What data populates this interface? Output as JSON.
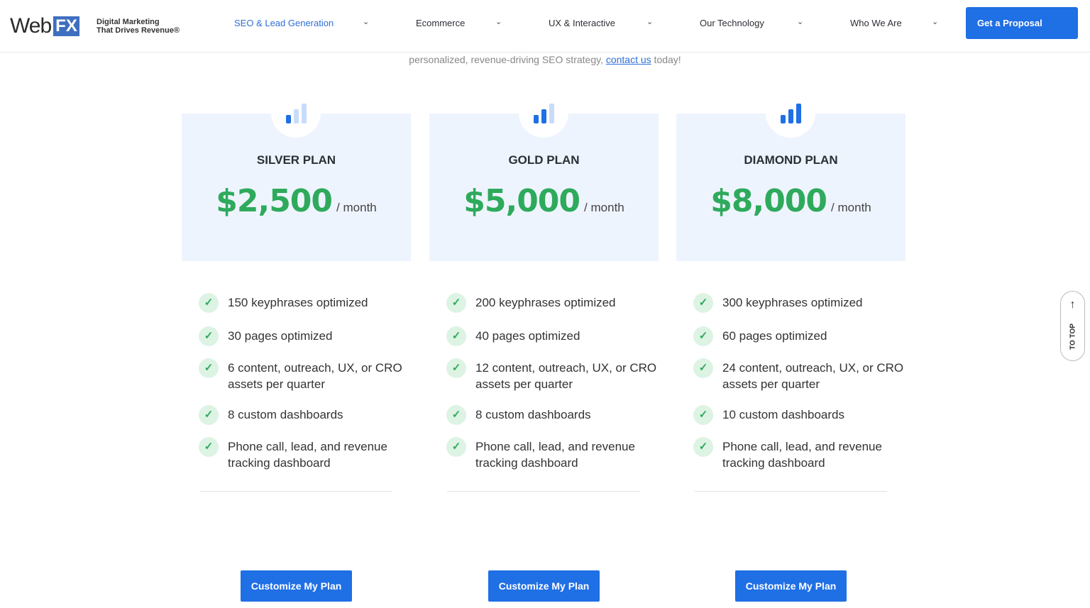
{
  "header": {
    "logo_web": "Web",
    "logo_fx": "FX",
    "tagline_1": "Digital Marketing",
    "tagline_2": "That Drives Revenue®",
    "nav": [
      {
        "label": "SEO & Lead Generation"
      },
      {
        "label": "Ecommerce"
      },
      {
        "label": "UX & Interactive"
      },
      {
        "label": "Our Technology"
      },
      {
        "label": "Who We Are"
      }
    ],
    "cta": "Get a Proposal",
    "accent": "#1f6fe5"
  },
  "intro": {
    "before": "personalized, revenue-driving SEO strategy, ",
    "link": "contact us",
    "after": " today!"
  },
  "plans": [
    {
      "name": "SILVER PLAN",
      "price": "$2,500",
      "period": "/ month",
      "signal_level": 1,
      "features": [
        "150 keyphrases optimized",
        "30 pages optimized",
        "6 content, outreach, UX, or CRO assets per quarter",
        "8 custom dashboards",
        "Phone call, lead, and revenue tracking dashboard"
      ],
      "button": "Customize My Plan"
    },
    {
      "name": "GOLD PLAN",
      "price": "$5,000",
      "period": "/ month",
      "signal_level": 2,
      "features": [
        "200 keyphrases optimized",
        "40 pages optimized",
        "12 content, outreach, UX, or CRO assets per quarter",
        "8 custom dashboards",
        "Phone call, lead, and revenue tracking dashboard"
      ],
      "button": "Customize My Plan"
    },
    {
      "name": "DIAMOND PLAN",
      "price": "$8,000",
      "period": "/ month",
      "signal_level": 3,
      "features": [
        "300 keyphrases optimized",
        "60 pages optimized",
        "24 content, outreach, UX, or CRO assets per quarter",
        "10 custom dashboards",
        "Phone call, lead, and revenue tracking dashboard"
      ],
      "button": "Customize My Plan"
    }
  ],
  "to_top": {
    "label": "TO TOP"
  },
  "colors": {
    "price_green": "#2eaa5c",
    "card_bg": "#eef4fd"
  }
}
